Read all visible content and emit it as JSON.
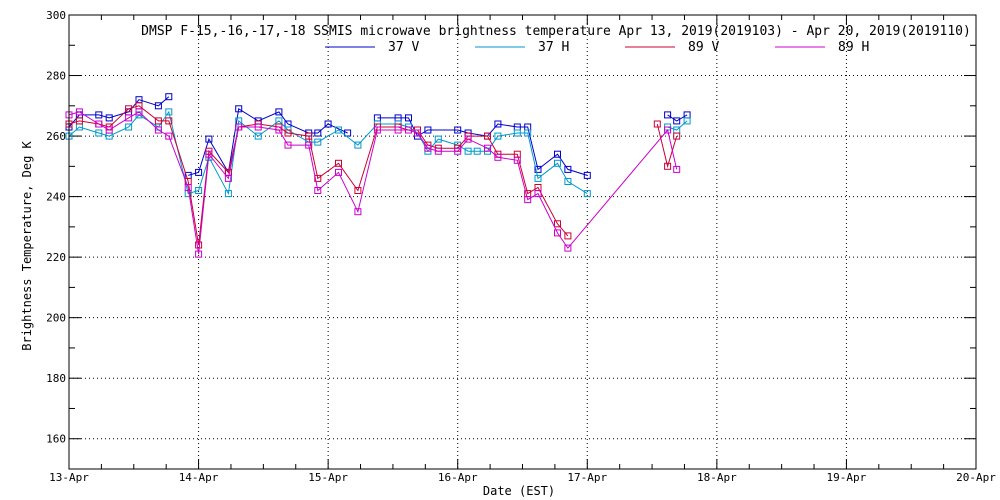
{
  "chart_data": {
    "type": "line",
    "title": "DMSP F-15,-16,-17,-18 SSMIS microwave brightness temperature Apr 13, 2019(2019103) - Apr 20, 2019(2019110)",
    "xlabel": "Date (EST)",
    "ylabel": "Brightness Temperature, Deg K",
    "ylim": [
      150,
      300
    ],
    "xlim": [
      0,
      7
    ],
    "yticks": [
      160,
      180,
      200,
      220,
      240,
      260,
      280,
      300
    ],
    "xtick_labels": [
      "13-Apr",
      "14-Apr",
      "15-Apr",
      "16-Apr",
      "17-Apr",
      "18-Apr",
      "19-Apr",
      "20-Apr"
    ],
    "grid": true,
    "legend": "top-center",
    "series": [
      {
        "name": "37 V",
        "color": "#0000cc",
        "x": [
          0.0,
          0.08,
          0.23,
          0.31,
          0.46,
          0.54,
          0.69,
          0.77,
          0.0,
          0.92,
          1.0,
          1.08,
          1.23,
          1.31,
          1.46,
          1.62,
          1.69,
          1.85,
          1.92,
          2.0,
          2.15,
          2.23,
          2.38,
          2.54,
          2.62,
          2.69,
          2.77,
          3.0,
          3.08,
          3.23,
          3.31,
          3.46,
          3.54,
          3.62,
          3.77,
          3.85,
          4.0,
          4.08,
          4.23,
          4.31,
          4.62,
          4.69,
          4.77
        ],
        "y": [
          263,
          267,
          267,
          266,
          268,
          272,
          270,
          273,
          null,
          247,
          248,
          259,
          248,
          269,
          265,
          268,
          264,
          261,
          261,
          264,
          261,
          null,
          266,
          266,
          266,
          260,
          262,
          262,
          261,
          260,
          264,
          263,
          263,
          249,
          254,
          249,
          247,
          null,
          null,
          null,
          267,
          265,
          267
        ]
      },
      {
        "name": "37 H",
        "color": "#0099cc",
        "x": [
          0.0,
          0.08,
          0.23,
          0.31,
          0.46,
          0.54,
          0.69,
          0.77,
          0.92,
          1.0,
          1.08,
          1.23,
          1.31,
          1.46,
          1.62,
          1.69,
          1.85,
          1.92,
          2.08,
          2.23,
          2.38,
          2.54,
          2.62,
          2.69,
          2.77,
          2.85,
          3.0,
          3.08,
          3.15,
          3.23,
          3.31,
          3.46,
          3.54,
          3.62,
          3.77,
          3.85,
          4.0,
          4.08,
          4.23,
          4.62,
          4.69,
          4.77
        ],
        "y": [
          260,
          263,
          261,
          260,
          263,
          267,
          263,
          268,
          241,
          242,
          253,
          241,
          265,
          260,
          265,
          262,
          258,
          258,
          262,
          257,
          264,
          264,
          263,
          261,
          255,
          259,
          257,
          255,
          255,
          255,
          260,
          261,
          261,
          246,
          251,
          245,
          241,
          null,
          null,
          263,
          262,
          265
        ]
      },
      {
        "name": "89 V",
        "color": "#cc0033",
        "x": [
          0.0,
          0.08,
          0.23,
          0.31,
          0.46,
          0.54,
          0.69,
          0.77,
          0.92,
          1.0,
          1.08,
          1.23,
          1.31,
          1.46,
          1.62,
          1.69,
          1.85,
          1.92,
          2.08,
          2.23,
          2.38,
          2.54,
          2.62,
          2.69,
          2.77,
          2.85,
          3.0,
          3.08,
          3.23,
          3.31,
          3.46,
          3.54,
          3.62,
          3.77,
          3.85,
          4.0,
          4.08,
          4.23,
          4.38,
          4.54,
          4.62,
          4.69
        ],
        "y": [
          264,
          265,
          264,
          263,
          269,
          270,
          265,
          265,
          245,
          224,
          255,
          248,
          263,
          264,
          263,
          261,
          260,
          246,
          251,
          242,
          263,
          263,
          262,
          262,
          257,
          256,
          256,
          260,
          260,
          254,
          254,
          241,
          243,
          231,
          227,
          null,
          null,
          null,
          null,
          264,
          250,
          260
        ]
      },
      {
        "name": "89 H",
        "color": "#cc00cc",
        "x": [
          0.0,
          0.08,
          0.23,
          0.31,
          0.46,
          0.54,
          0.69,
          0.77,
          0.92,
          1.0,
          1.08,
          1.23,
          1.31,
          1.46,
          1.62,
          1.69,
          1.85,
          1.92,
          2.08,
          2.23,
          2.38,
          2.54,
          2.62,
          2.69,
          2.77,
          2.85,
          3.0,
          3.08,
          3.23,
          3.31,
          3.46,
          3.54,
          3.62,
          3.77,
          3.85,
          4.62,
          4.69
        ],
        "y": [
          267,
          268,
          264,
          262,
          266,
          268,
          262,
          260,
          243,
          221,
          254,
          246,
          263,
          263,
          262,
          257,
          257,
          242,
          248,
          235,
          262,
          262,
          262,
          261,
          256,
          255,
          255,
          259,
          256,
          253,
          252,
          239,
          241,
          228,
          223,
          262,
          249
        ]
      }
    ]
  }
}
